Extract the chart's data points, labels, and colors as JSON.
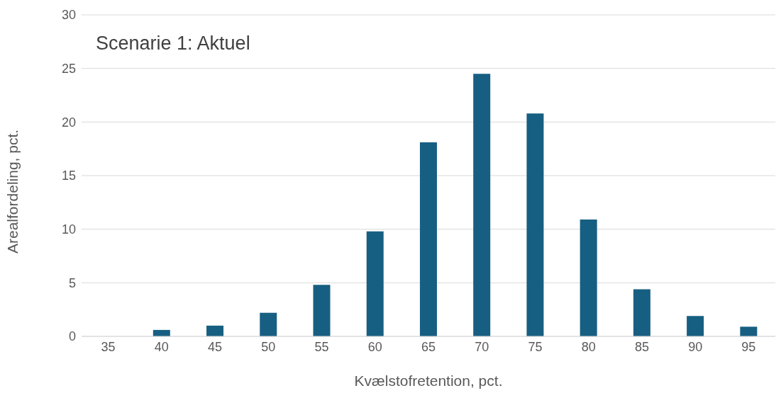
{
  "chart_data": {
    "type": "bar",
    "title": "Scenarie 1: Aktuel",
    "xlabel": "Kvælstofretention, pct.",
    "ylabel": "Arealfordeling, pct.",
    "categories": [
      "35",
      "40",
      "45",
      "50",
      "55",
      "60",
      "65",
      "70",
      "75",
      "80",
      "85",
      "90",
      "95"
    ],
    "values": [
      0,
      0.6,
      1.0,
      2.2,
      4.8,
      9.8,
      18.1,
      24.5,
      20.8,
      10.9,
      4.4,
      1.9,
      0.9
    ],
    "color": "#175f82",
    "ylim": [
      0,
      30
    ],
    "yticks": [
      0,
      5,
      10,
      15,
      20,
      25,
      30
    ],
    "grid": "y",
    "legend": false
  }
}
